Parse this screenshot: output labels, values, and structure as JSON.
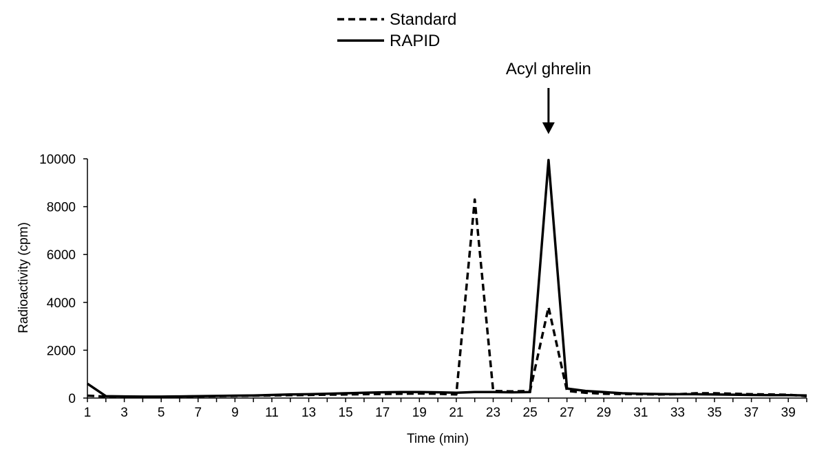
{
  "chart_data": {
    "type": "line",
    "xlabel": "Time (min)",
    "ylabel": "Radioactivity (cpm)",
    "x": [
      1,
      2,
      3,
      4,
      5,
      6,
      7,
      8,
      9,
      10,
      11,
      12,
      13,
      14,
      15,
      16,
      17,
      18,
      19,
      20,
      21,
      22,
      23,
      24,
      25,
      26,
      27,
      28,
      29,
      30,
      31,
      32,
      33,
      34,
      35,
      36,
      37,
      38,
      39,
      40
    ],
    "x_ticks": [
      1,
      3,
      5,
      7,
      9,
      11,
      13,
      15,
      17,
      19,
      21,
      23,
      25,
      27,
      29,
      31,
      33,
      35,
      37,
      39
    ],
    "xlim": [
      1,
      40
    ],
    "ylim": [
      0,
      10000
    ],
    "y_ticks": [
      0,
      2000,
      4000,
      6000,
      8000,
      10000
    ],
    "grid": false,
    "legend_position": "top-center",
    "series": [
      {
        "name": "Standard",
        "style": "dashed",
        "color": "#000000",
        "values": [
          100,
          60,
          40,
          40,
          50,
          60,
          70,
          80,
          90,
          100,
          110,
          120,
          130,
          140,
          150,
          160,
          170,
          180,
          190,
          180,
          150,
          8300,
          300,
          280,
          300,
          3800,
          300,
          220,
          180,
          170,
          160,
          150,
          160,
          200,
          200,
          180,
          160,
          150,
          140,
          80
        ]
      },
      {
        "name": "RAPID",
        "style": "solid",
        "color": "#000000",
        "values": [
          600,
          80,
          70,
          60,
          60,
          70,
          80,
          90,
          100,
          110,
          130,
          150,
          160,
          180,
          200,
          220,
          240,
          250,
          250,
          240,
          220,
          250,
          250,
          240,
          250,
          9950,
          400,
          300,
          250,
          200,
          180,
          170,
          160,
          160,
          150,
          140,
          130,
          120,
          120,
          110
        ]
      }
    ],
    "annotations": [
      {
        "text": "Acyl ghrelin",
        "x": 26,
        "type": "arrow-down"
      }
    ]
  }
}
